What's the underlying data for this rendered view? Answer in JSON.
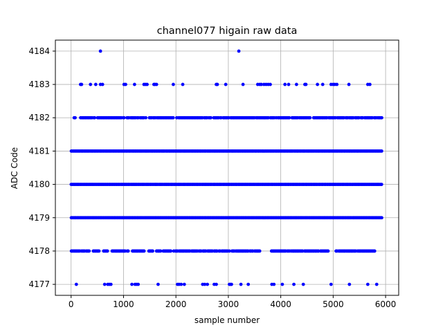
{
  "chart_data": {
    "type": "scatter",
    "title": "channel077 higain raw data",
    "xlabel": "sample number",
    "ylabel": "ADC Code",
    "xlim": [
      -300,
      6250
    ],
    "ylim": [
      4176.67,
      4184.33
    ],
    "xticks": [
      0,
      1000,
      2000,
      3000,
      4000,
      5000,
      6000
    ],
    "yticks": [
      4177,
      4178,
      4179,
      4180,
      4181,
      4182,
      4183,
      4184
    ],
    "grid": true,
    "marker_color": "#0000ff",
    "series": [
      {
        "levels": [
          {
            "y": 4184,
            "x": [
              560,
              3200
            ]
          },
          {
            "y": 4183,
            "x": [
              180,
              200,
              370,
              470,
              560,
              600,
              1010,
              1040,
              1210,
              1390,
              1420,
              1450,
              1580,
              1600,
              1630,
              1950,
              2130,
              2770,
              2790,
              2950,
              3280,
              3560,
              3600,
              3630,
              3680,
              3720,
              3760,
              3800,
              4080,
              4150,
              4300,
              4460,
              4480,
              4700,
              4800,
              4960,
              5000,
              5030,
              5070,
              5300,
              5660,
              5700
            ]
          },
          {
            "y": 4177,
            "x": [
              100,
              640,
              700,
              730,
              760,
              1160,
              1220,
              1250,
              1280,
              1660,
              2030,
              2060,
              2100,
              2160,
              2510,
              2550,
              2600,
              2730,
              2770,
              3020,
              3040,
              3060,
              3240,
              3380,
              3830,
              3870,
              4030,
              4250,
              4430,
              4960,
              5310,
              5660,
              5830
            ]
          }
        ],
        "dense_levels": [
          {
            "y": 4178,
            "ranges": [
              [
                0,
                360
              ],
              [
                420,
                560
              ],
              [
                620,
                700
              ],
              [
                760,
                1100
              ],
              [
                1170,
                1400
              ],
              [
                1480,
                1560
              ],
              [
                1630,
                3600
              ],
              [
                3820,
                4900
              ],
              [
                5050,
                5800
              ]
            ],
            "density": 0.9
          },
          {
            "y": 4179,
            "ranges": [
              [
                0,
                5930
              ]
            ],
            "density": 1.0
          },
          {
            "y": 4180,
            "ranges": [
              [
                0,
                5930
              ]
            ],
            "density": 1.0
          },
          {
            "y": 4181,
            "ranges": [
              [
                0,
                5930
              ]
            ],
            "density": 1.0
          },
          {
            "y": 4182,
            "ranges": [
              [
                40,
                90
              ],
              [
                180,
                5930
              ]
            ],
            "density": 0.85
          }
        ]
      }
    ]
  }
}
